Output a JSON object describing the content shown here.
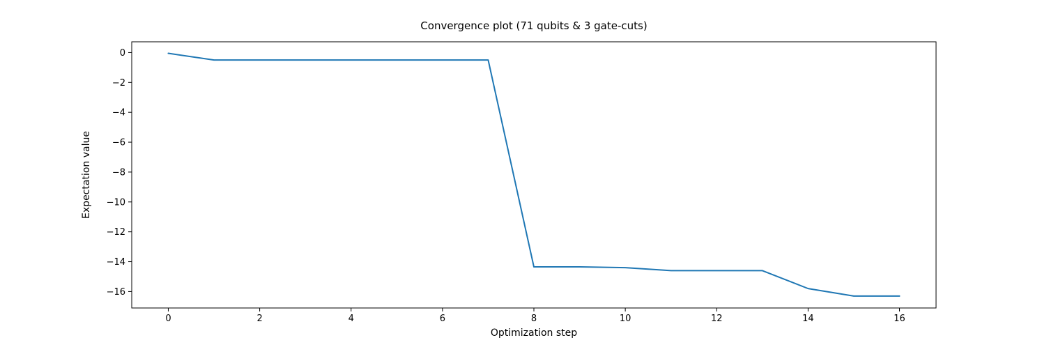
{
  "figure": {
    "background": "#ffffff"
  },
  "chart_data": {
    "type": "line",
    "title": "Convergence plot (71 qubits & 3 gate-cuts)",
    "xlabel": "Optimization step",
    "ylabel": "Expectation value",
    "x": [
      0,
      1,
      2,
      3,
      4,
      5,
      6,
      7,
      8,
      9,
      10,
      11,
      12,
      13,
      14,
      15,
      16
    ],
    "y": [
      -0.05,
      -0.5,
      -0.5,
      -0.5,
      -0.5,
      -0.5,
      -0.5,
      -0.5,
      -14.35,
      -14.35,
      -14.4,
      -14.6,
      -14.6,
      -14.6,
      -15.8,
      -16.3,
      -16.3
    ],
    "xlim": [
      -0.8,
      16.8
    ],
    "ylim": [
      -17.1,
      0.72
    ],
    "xticks": [
      0,
      2,
      4,
      6,
      8,
      10,
      12,
      14,
      16
    ],
    "xtick_labels": [
      "0",
      "2",
      "4",
      "6",
      "8",
      "10",
      "12",
      "14",
      "16"
    ],
    "yticks": [
      0,
      -2,
      -4,
      -6,
      -8,
      -10,
      -12,
      -14,
      -16
    ],
    "ytick_labels": [
      "0",
      "−2",
      "−4",
      "−6",
      "−8",
      "−10",
      "−12",
      "−14",
      "−16"
    ],
    "line_color": "#1f77b4",
    "line_width": 2,
    "spine_color": "#000000",
    "grid": false,
    "legend": null
  }
}
